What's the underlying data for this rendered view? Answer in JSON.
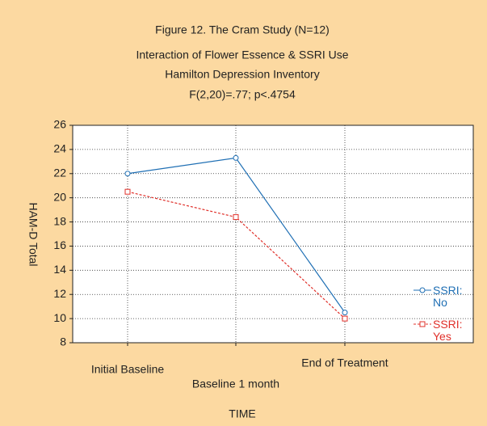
{
  "chart_data": {
    "type": "line",
    "title": "Figure 12.  The Cram Study (N=12)",
    "subtitle": [
      "Interaction of Flower Essence & SSRI Use",
      "Hamilton Depression Inventory"
    ],
    "annotation": "F(2,20)=.77; p<.4754",
    "x_label": "TIME",
    "y_label": "HAM-D Total",
    "categories": [
      "Initial Baseline",
      "Baseline 1 month",
      "End of Treatment"
    ],
    "series": [
      {
        "name": "SSRI: No",
        "color": "#1f6fb4",
        "marker": "circle",
        "line_style": "solid",
        "values": [
          22,
          23.3,
          10.5
        ]
      },
      {
        "name": "SSRI: Yes",
        "color": "#e0302a",
        "marker": "square",
        "line_style": "dashed",
        "values": [
          20.5,
          18.4,
          10.0
        ]
      }
    ],
    "ylim": [
      8,
      26
    ],
    "yticks": [
      8,
      10,
      12,
      14,
      16,
      18,
      20,
      22,
      24,
      26
    ],
    "grid": true,
    "legend": "right"
  }
}
